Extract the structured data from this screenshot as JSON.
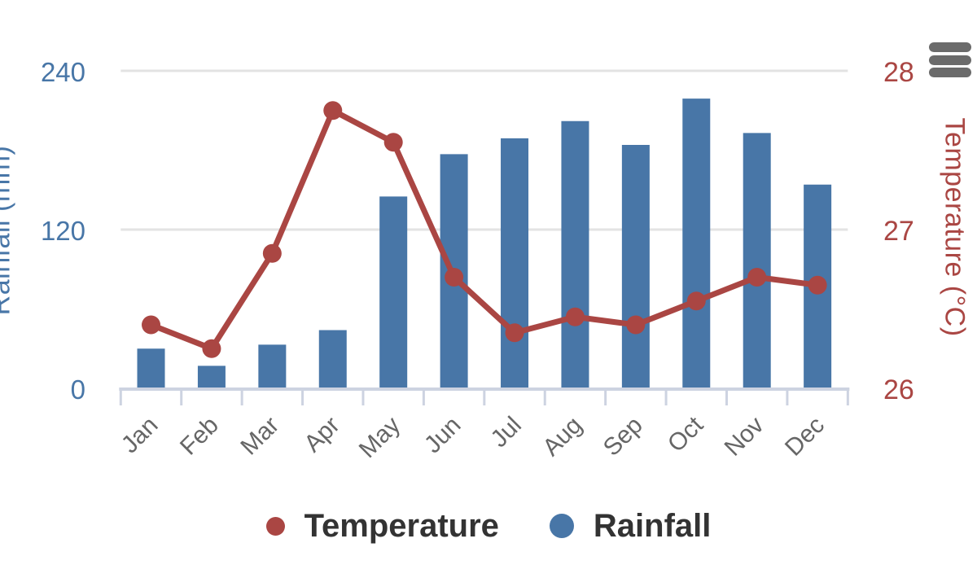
{
  "chart_data": {
    "type": "combo-column-line",
    "categories": [
      "Jan",
      "Feb",
      "Mar",
      "Apr",
      "May",
      "Jun",
      "Jul",
      "Aug",
      "Sep",
      "Oct",
      "Nov",
      "Dec"
    ],
    "series": [
      {
        "name": "Temperature",
        "type": "line",
        "axis": "right",
        "color": "#AA4643",
        "values": [
          26.4,
          26.25,
          26.85,
          27.75,
          27.55,
          26.7,
          26.35,
          26.45,
          26.4,
          26.55,
          26.7,
          26.65
        ]
      },
      {
        "name": "Rainfall",
        "type": "column",
        "axis": "left",
        "color": "#4876A7",
        "values": [
          30,
          17,
          33,
          44,
          145,
          177,
          189,
          202,
          184,
          219,
          193,
          154
        ]
      }
    ],
    "y_left": {
      "title": "Rainfall (mm)",
      "min": 0,
      "max": 240,
      "ticks": [
        0,
        120,
        240
      ],
      "label_color": "#4876A7"
    },
    "y_right": {
      "title": "Temperature (°C)",
      "min": 26,
      "max": 28,
      "ticks": [
        26,
        27,
        28
      ],
      "label_color": "#AA4643"
    },
    "x_axis": {
      "label_rotation": -45,
      "label_color": "#666666"
    },
    "legend": {
      "items": [
        "Temperature",
        "Rainfall"
      ],
      "text_color": "#333333",
      "position": "bottom-center"
    },
    "grid": {
      "gridline_color": "#e3e3e3",
      "axis_color": "#cdd3e1",
      "background": "#ffffff",
      "grid_on": true
    }
  },
  "controls": {
    "context_menu": {
      "icon": "hamburger-icon",
      "color": "#6b6b6b"
    }
  }
}
